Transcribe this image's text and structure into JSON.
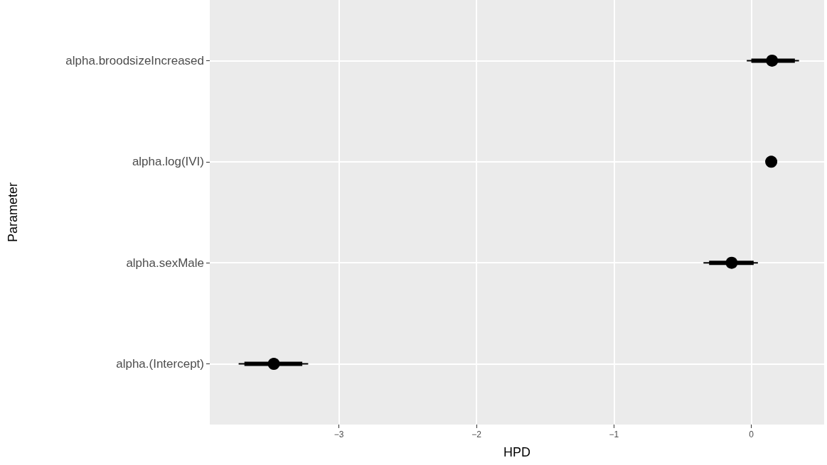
{
  "chart_data": {
    "type": "scatter",
    "orientation": "horizontal",
    "xlabel": "HPD",
    "ylabel": "Parameter",
    "categories": [
      "alpha.broodsizeIncreased",
      "alpha.log(IVI)",
      "alpha.sexMale",
      "alpha.(Intercept)"
    ],
    "series": [
      {
        "type": "bar",
        "color": "#000000",
        "base": [
          0.0,
          null,
          -0.307,
          -3.688
        ],
        "values": [
          0.317,
          null,
          0.324,
          0.421
        ]
      },
      {
        "color": "#000000",
        "marker": "circle",
        "values": [
          0.151,
          0.145,
          -0.143,
          -3.474
        ],
        "errors": [
          [
            -0.033,
            0.347
          ],
          null,
          [
            -0.348,
            0.048
          ],
          [
            -3.73,
            -3.224
          ]
        ]
      }
    ],
    "xlim": [
      -3.94,
      0.53
    ],
    "xticks": [
      {
        "value": -3,
        "label": "−3"
      },
      {
        "value": -2,
        "label": "−2"
      },
      {
        "value": -1,
        "label": "−1"
      },
      {
        "value": 0,
        "label": "0"
      }
    ],
    "grid": true
  }
}
